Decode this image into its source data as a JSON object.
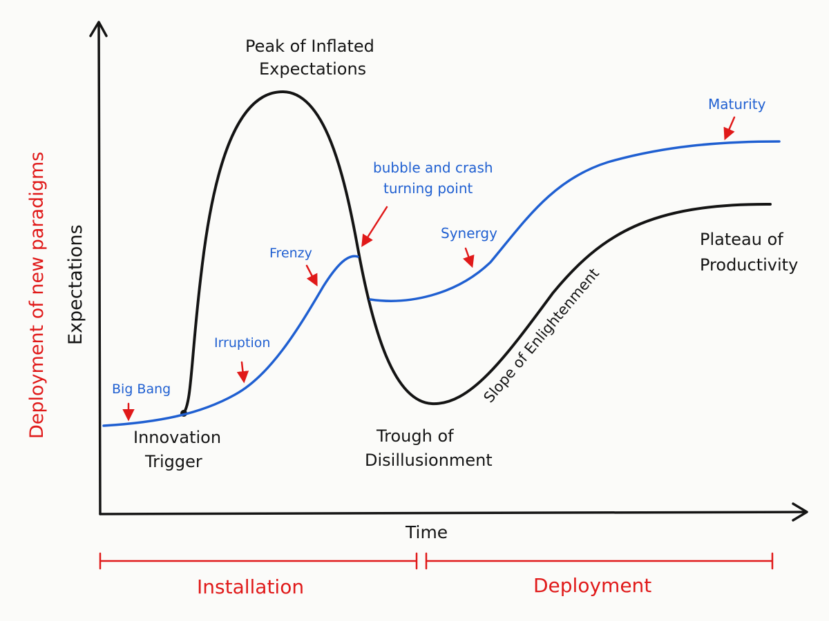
{
  "axes": {
    "y_label": "Expectations",
    "x_label": "Time",
    "y_side_label": "Deployment of new paradigms"
  },
  "phases": {
    "installation": "Installation",
    "deployment": "Deployment"
  },
  "hype_labels": {
    "peak": [
      "Peak of Inflated",
      "Expectations"
    ],
    "trigger": [
      "Innovation",
      "Trigger"
    ],
    "trough": [
      "Trough of",
      "Disillusionment"
    ],
    "slope": "Slope of Enlightenment",
    "plateau": [
      "Plateau of",
      "Productivity"
    ]
  },
  "paradigm_labels": {
    "big_bang": "Big Bang",
    "irruption": "Irruption",
    "frenzy": "Frenzy",
    "turning_point": [
      "bubble and crash",
      "turning point"
    ],
    "synergy": "Synergy",
    "maturity": "Maturity"
  },
  "colors": {
    "hype_curve": "#141414",
    "paradigm_curve": "#1f5fd1",
    "annotation": "#e01919"
  }
}
